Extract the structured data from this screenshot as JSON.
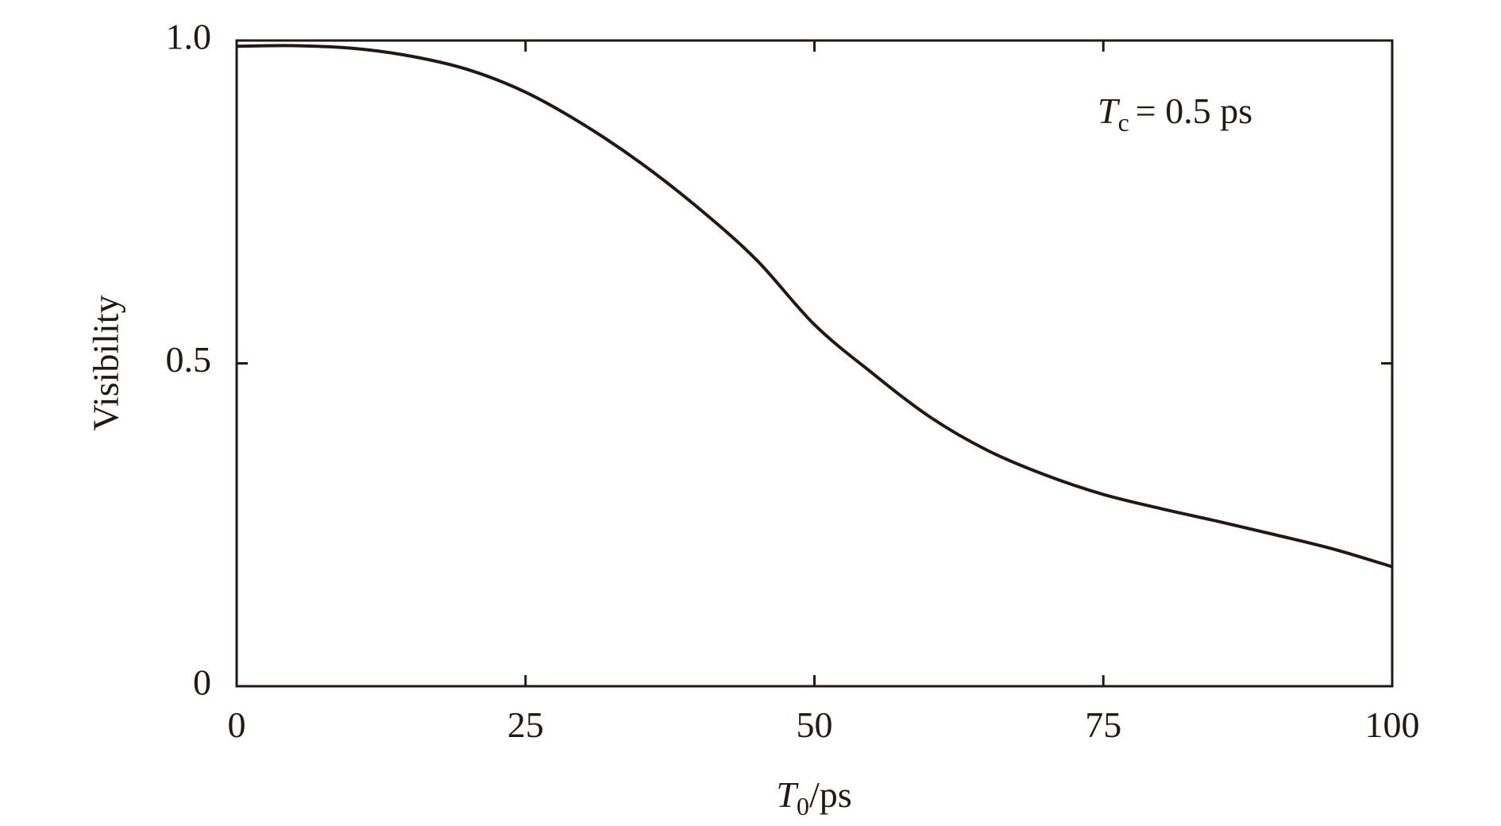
{
  "chart_data": {
    "type": "line",
    "xlabel": {
      "italic": "T",
      "sub": "0",
      "rest": "/ps"
    },
    "ylabel": "Visibility",
    "annotation": {
      "italic": "T",
      "sub": "c",
      "rest": "= 0.5 ps"
    },
    "x": [
      0,
      5,
      10,
      15,
      20,
      25,
      30,
      35,
      40,
      45,
      50,
      55,
      60,
      65,
      70,
      75,
      80,
      85,
      90,
      95,
      100
    ],
    "y": [
      0.991,
      0.992,
      0.988,
      0.976,
      0.955,
      0.92,
      0.87,
      0.81,
      0.74,
      0.66,
      0.56,
      0.485,
      0.417,
      0.365,
      0.327,
      0.297,
      0.275,
      0.255,
      0.234,
      0.212,
      0.185
    ],
    "color": "#231815",
    "xlim": [
      0,
      100
    ],
    "xticks": [
      0,
      25,
      50,
      75,
      100
    ],
    "ylim": [
      0,
      1
    ],
    "yticks": [
      0,
      0.5,
      {
        "value": 1,
        "label": "1.0"
      }
    ],
    "grid": false
  }
}
